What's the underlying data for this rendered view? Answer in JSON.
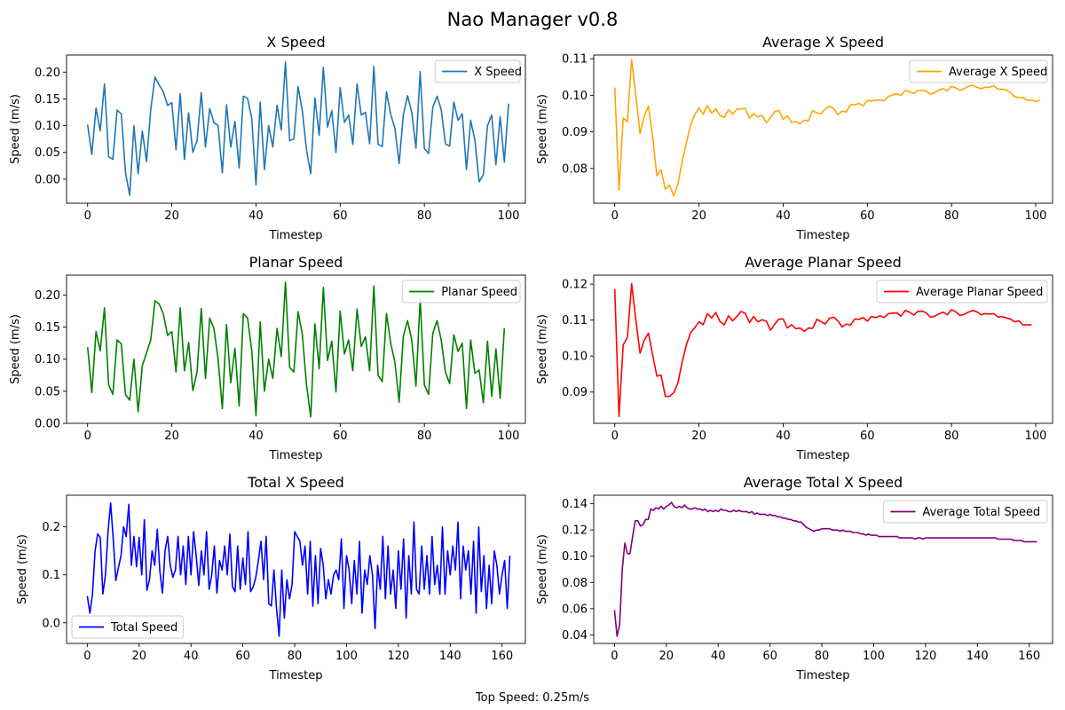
{
  "title": "Nao Manager v0.8",
  "footer": "Top Speed: 0.25m/s",
  "chart_data": [
    {
      "type": "line",
      "title": "X Speed",
      "xlabel": "Timestep",
      "ylabel": "Speed (m/s)",
      "xlim": [
        -5,
        104
      ],
      "ylim": [
        -0.045,
        0.232
      ],
      "xticks": [
        0,
        20,
        40,
        60,
        80,
        100
      ],
      "yticks": [
        0.0,
        0.05,
        0.1,
        0.15,
        0.2
      ],
      "ytick_labels": [
        "0.00",
        "0.05",
        "0.10",
        "0.15",
        "0.20"
      ],
      "legend_position": "upper right",
      "series": [
        {
          "name": "X Speed",
          "color": "#1f77b4",
          "x_start": 0,
          "values": [
            0.102,
            0.046,
            0.133,
            0.09,
            0.178,
            0.042,
            0.037,
            0.129,
            0.122,
            0.012,
            -0.03,
            0.1,
            0.01,
            0.09,
            0.033,
            0.13,
            0.191,
            0.176,
            0.163,
            0.138,
            0.143,
            0.055,
            0.16,
            0.037,
            0.124,
            0.05,
            0.072,
            0.162,
            0.06,
            0.132,
            0.106,
            0.1,
            0.012,
            0.139,
            0.06,
            0.108,
            0.021,
            0.155,
            0.151,
            0.113,
            -0.011,
            0.144,
            0.018,
            0.1,
            0.06,
            0.138,
            0.092,
            0.219,
            0.072,
            0.075,
            0.173,
            0.128,
            0.055,
            0.01,
            0.152,
            0.082,
            0.209,
            0.097,
            0.128,
            0.05,
            0.171,
            0.106,
            0.12,
            0.065,
            0.178,
            0.12,
            0.125,
            0.066,
            0.211,
            0.065,
            0.061,
            0.163,
            0.121,
            0.095,
            0.029,
            0.12,
            0.156,
            0.125,
            0.058,
            0.201,
            0.057,
            0.048,
            0.134,
            0.155,
            0.13,
            0.066,
            0.062,
            0.144,
            0.11,
            0.122,
            0.018,
            0.11,
            0.073,
            -0.005,
            0.008,
            0.1,
            0.12,
            0.027,
            0.117,
            0.032,
            0.141
          ]
        }
      ]
    },
    {
      "type": "line",
      "title": "Average X Speed",
      "xlabel": "Timestep",
      "ylabel": "Speed (m/s)",
      "xlim": [
        -5,
        104
      ],
      "ylim": [
        0.0705,
        0.111
      ],
      "xticks": [
        0,
        20,
        40,
        60,
        80,
        100
      ],
      "yticks": [
        0.08,
        0.09,
        0.1,
        0.11
      ],
      "ytick_labels": [
        "0.08",
        "0.09",
        "0.10",
        "0.11"
      ],
      "legend_position": "upper right",
      "series": [
        {
          "name": "Average X Speed",
          "color": "#ffa500",
          "x_start": 0,
          "values": [
            0.1021,
            0.0741,
            0.0938,
            0.0928,
            0.1097,
            0.1,
            0.0895,
            0.0943,
            0.0971,
            0.0885,
            0.078,
            0.0796,
            0.0743,
            0.0755,
            0.0725,
            0.0758,
            0.0818,
            0.087,
            0.0918,
            0.0947,
            0.0966,
            0.0948,
            0.0972,
            0.0951,
            0.0963,
            0.0945,
            0.0939,
            0.096,
            0.0949,
            0.0962,
            0.0963,
            0.0964,
            0.0938,
            0.0949,
            0.0941,
            0.0945,
            0.0925,
            0.0939,
            0.0955,
            0.0959,
            0.0934,
            0.0944,
            0.0926,
            0.0928,
            0.0922,
            0.0932,
            0.093,
            0.0958,
            0.0952,
            0.0949,
            0.0963,
            0.097,
            0.0964,
            0.0947,
            0.0957,
            0.0954,
            0.0974,
            0.0974,
            0.0978,
            0.0971,
            0.0986,
            0.0984,
            0.0987,
            0.0987,
            0.0985,
            0.0997,
            0.1001,
            0.1004,
            0.1,
            0.1013,
            0.101,
            0.1005,
            0.1013,
            0.1014,
            0.1011,
            0.1003,
            0.1007,
            0.1014,
            0.1018,
            0.1012,
            0.1025,
            0.102,
            0.1013,
            0.1018,
            0.1025,
            0.1027,
            0.1022,
            0.1018,
            0.1022,
            0.1022,
            0.1026,
            0.1017,
            0.1016,
            0.1015,
            0.1007,
            0.0996,
            0.0993,
            0.0994,
            0.0986,
            0.0987,
            0.0983,
            0.0986
          ]
        }
      ]
    },
    {
      "type": "line",
      "title": "Planar Speed",
      "xlabel": "Timestep",
      "ylabel": "Speed (m/s)",
      "xlim": [
        -5,
        104
      ],
      "ylim": [
        0.0,
        0.231
      ],
      "xticks": [
        0,
        20,
        40,
        60,
        80,
        100
      ],
      "yticks": [
        0.0,
        0.05,
        0.1,
        0.15,
        0.2
      ],
      "ytick_labels": [
        "0.00",
        "0.05",
        "0.10",
        "0.15",
        "0.20"
      ],
      "legend_position": "upper right",
      "series": [
        {
          "name": "Planar Speed",
          "color": "#008000",
          "x_start": 0,
          "values": [
            0.119,
            0.048,
            0.143,
            0.113,
            0.18,
            0.06,
            0.045,
            0.13,
            0.124,
            0.045,
            0.036,
            0.1,
            0.018,
            0.09,
            0.11,
            0.13,
            0.191,
            0.186,
            0.17,
            0.137,
            0.143,
            0.08,
            0.18,
            0.082,
            0.126,
            0.051,
            0.08,
            0.179,
            0.07,
            0.164,
            0.148,
            0.1,
            0.023,
            0.154,
            0.063,
            0.117,
            0.027,
            0.171,
            0.164,
            0.113,
            0.012,
            0.158,
            0.05,
            0.1,
            0.07,
            0.148,
            0.104,
            0.22,
            0.087,
            0.08,
            0.174,
            0.139,
            0.06,
            0.01,
            0.155,
            0.085,
            0.212,
            0.098,
            0.128,
            0.049,
            0.175,
            0.108,
            0.13,
            0.082,
            0.178,
            0.12,
            0.135,
            0.082,
            0.214,
            0.075,
            0.065,
            0.171,
            0.125,
            0.095,
            0.033,
            0.136,
            0.16,
            0.13,
            0.058,
            0.194,
            0.06,
            0.045,
            0.14,
            0.16,
            0.13,
            0.08,
            0.062,
            0.138,
            0.112,
            0.125,
            0.023,
            0.13,
            0.078,
            0.083,
            0.032,
            0.128,
            0.042,
            0.116,
            0.039,
            0.148
          ]
        }
      ]
    },
    {
      "type": "line",
      "title": "Average Planar Speed",
      "xlabel": "Timestep",
      "ylabel": "Speed (m/s)",
      "xlim": [
        -5,
        104
      ],
      "ylim": [
        0.0813,
        0.1225
      ],
      "xticks": [
        0,
        20,
        40,
        60,
        80,
        100
      ],
      "yticks": [
        0.09,
        0.1,
        0.11,
        0.12
      ],
      "ytick_labels": [
        "0.09",
        "0.10",
        "0.11",
        "0.12"
      ],
      "legend_position": "upper right",
      "series": [
        {
          "name": "Average Planar Speed",
          "color": "#ff0000",
          "x_start": 0,
          "values": [
            0.1186,
            0.0832,
            0.1031,
            0.1052,
            0.1201,
            0.1101,
            0.1008,
            0.1044,
            0.1064,
            0.1003,
            0.0944,
            0.0947,
            0.0888,
            0.0888,
            0.0898,
            0.0925,
            0.0983,
            0.1031,
            0.1065,
            0.1079,
            0.1095,
            0.1087,
            0.1118,
            0.1106,
            0.1121,
            0.1096,
            0.1087,
            0.1112,
            0.1098,
            0.111,
            0.1124,
            0.1119,
            0.1093,
            0.111,
            0.1095,
            0.1101,
            0.1097,
            0.1072,
            0.1089,
            0.1103,
            0.1103,
            0.1078,
            0.1087,
            0.1076,
            0.1078,
            0.1069,
            0.1078,
            0.1077,
            0.1102,
            0.1096,
            0.1089,
            0.1105,
            0.1108,
            0.1098,
            0.1081,
            0.1089,
            0.1086,
            0.1103,
            0.1102,
            0.1107,
            0.1097,
            0.111,
            0.1107,
            0.1112,
            0.1107,
            0.1118,
            0.1119,
            0.112,
            0.1111,
            0.1127,
            0.1122,
            0.1114,
            0.1124,
            0.1125,
            0.112,
            0.1108,
            0.1111,
            0.1117,
            0.1122,
            0.1115,
            0.1129,
            0.1123,
            0.1113,
            0.1116,
            0.1122,
            0.1127,
            0.1123,
            0.1115,
            0.1118,
            0.1117,
            0.1118,
            0.1109,
            0.111,
            0.1106,
            0.1103,
            0.1095,
            0.1098,
            0.1086,
            0.1087,
            0.1087
          ]
        }
      ]
    },
    {
      "type": "line",
      "title": "Total X Speed",
      "xlabel": "Timestep",
      "ylabel": "Speed (m/s)",
      "xlim": [
        -8,
        169
      ],
      "ylim": [
        -0.043,
        0.266
      ],
      "xticks": [
        0,
        20,
        40,
        60,
        80,
        100,
        120,
        140,
        160
      ],
      "yticks": [
        0.0,
        0.1,
        0.2
      ],
      "ytick_labels": [
        "0.0",
        "0.1",
        "0.2"
      ],
      "legend_position": "lower left",
      "series": [
        {
          "name": "Total Speed",
          "color": "#0000ff",
          "x_start": 0,
          "values": [
            0.056,
            0.02,
            0.06,
            0.15,
            0.185,
            0.178,
            0.06,
            0.1,
            0.19,
            0.25,
            0.175,
            0.088,
            0.115,
            0.14,
            0.2,
            0.18,
            0.247,
            0.12,
            0.18,
            0.117,
            0.178,
            0.1,
            0.215,
            0.068,
            0.09,
            0.15,
            0.12,
            0.195,
            0.107,
            0.062,
            0.15,
            0.18,
            0.12,
            0.095,
            0.11,
            0.18,
            0.1,
            0.16,
            0.08,
            0.18,
            0.1,
            0.19,
            0.14,
            0.078,
            0.15,
            0.1,
            0.19,
            0.07,
            0.1,
            0.16,
            0.062,
            0.13,
            0.11,
            0.16,
            0.1,
            0.185,
            0.075,
            0.065,
            0.16,
            0.07,
            0.135,
            0.08,
            0.19,
            0.065,
            0.075,
            0.095,
            0.13,
            0.17,
            0.09,
            0.18,
            0.04,
            0.035,
            0.11,
            0.03,
            -0.028,
            0.11,
            0.01,
            0.09,
            0.05,
            0.08,
            0.19,
            0.18,
            0.17,
            0.12,
            0.16,
            0.06,
            0.17,
            0.035,
            0.14,
            0.04,
            0.155,
            0.12,
            0.05,
            0.09,
            0.06,
            0.1,
            0.11,
            0.09,
            0.175,
            0.03,
            0.14,
            0.11,
            0.04,
            0.13,
            0.06,
            0.17,
            0.02,
            0.11,
            0.08,
            0.14,
            0.1,
            -0.012,
            0.12,
            0.07,
            0.18,
            0.05,
            0.16,
            0.06,
            0.11,
            0.03,
            0.15,
            0.07,
            0.175,
            0.01,
            0.14,
            0.06,
            0.21,
            0.07,
            0.06,
            0.16,
            0.07,
            0.14,
            0.06,
            0.18,
            0.08,
            0.12,
            0.06,
            0.2,
            0.06,
            0.15,
            0.1,
            0.16,
            0.11,
            0.21,
            0.05,
            0.16,
            0.11,
            0.15,
            0.06,
            0.17,
            0.02,
            0.2,
            0.065,
            0.14,
            0.03,
            0.12,
            0.04,
            0.15,
            0.12,
            0.06,
            0.1,
            0.13,
            0.03,
            0.14
          ]
        }
      ]
    },
    {
      "type": "line",
      "title": "Average Total X Speed",
      "xlabel": "Timestep",
      "ylabel": "Speed (m/s)",
      "xlim": [
        -8,
        169
      ],
      "ylim": [
        0.0335,
        0.1465
      ],
      "xticks": [
        0,
        20,
        40,
        60,
        80,
        100,
        120,
        140,
        160
      ],
      "yticks": [
        0.04,
        0.06,
        0.08,
        0.1,
        0.12,
        0.14
      ],
      "ytick_labels": [
        "0.04",
        "0.06",
        "0.08",
        "0.10",
        "0.12",
        "0.14"
      ],
      "legend_position": "upper right",
      "series": [
        {
          "name": "Average Total Speed",
          "color": "#800080",
          "x_start": 0,
          "values": [
            0.059,
            0.039,
            0.048,
            0.09,
            0.11,
            0.102,
            0.102,
            0.115,
            0.127,
            0.127,
            0.123,
            0.124,
            0.128,
            0.128,
            0.136,
            0.135,
            0.137,
            0.136,
            0.138,
            0.136,
            0.138,
            0.139,
            0.141,
            0.138,
            0.137,
            0.138,
            0.137,
            0.139,
            0.137,
            0.136,
            0.136,
            0.137,
            0.136,
            0.136,
            0.135,
            0.136,
            0.134,
            0.135,
            0.134,
            0.135,
            0.134,
            0.136,
            0.135,
            0.135,
            0.134,
            0.134,
            0.135,
            0.134,
            0.135,
            0.134,
            0.134,
            0.134,
            0.133,
            0.134,
            0.132,
            0.133,
            0.132,
            0.132,
            0.132,
            0.131,
            0.132,
            0.131,
            0.131,
            0.13,
            0.13,
            0.129,
            0.129,
            0.128,
            0.128,
            0.127,
            0.127,
            0.126,
            0.126,
            0.124,
            0.122,
            0.121,
            0.12,
            0.119,
            0.12,
            0.12,
            0.121,
            0.121,
            0.121,
            0.121,
            0.12,
            0.12,
            0.12,
            0.119,
            0.12,
            0.119,
            0.119,
            0.119,
            0.118,
            0.118,
            0.118,
            0.117,
            0.117,
            0.116,
            0.117,
            0.116,
            0.116,
            0.116,
            0.115,
            0.115,
            0.115,
            0.115,
            0.115,
            0.115,
            0.115,
            0.115,
            0.114,
            0.114,
            0.114,
            0.114,
            0.114,
            0.114,
            0.113,
            0.114,
            0.114,
            0.113,
            0.114,
            0.114,
            0.114,
            0.114,
            0.114,
            0.114,
            0.114,
            0.114,
            0.114,
            0.114,
            0.114,
            0.114,
            0.114,
            0.114,
            0.114,
            0.114,
            0.114,
            0.114,
            0.114,
            0.114,
            0.114,
            0.114,
            0.114,
            0.114,
            0.114,
            0.114,
            0.114,
            0.114,
            0.113,
            0.113,
            0.113,
            0.113,
            0.113,
            0.113,
            0.112,
            0.112,
            0.112,
            0.112,
            0.111,
            0.111,
            0.111,
            0.111,
            0.111,
            0.111
          ]
        }
      ]
    }
  ]
}
